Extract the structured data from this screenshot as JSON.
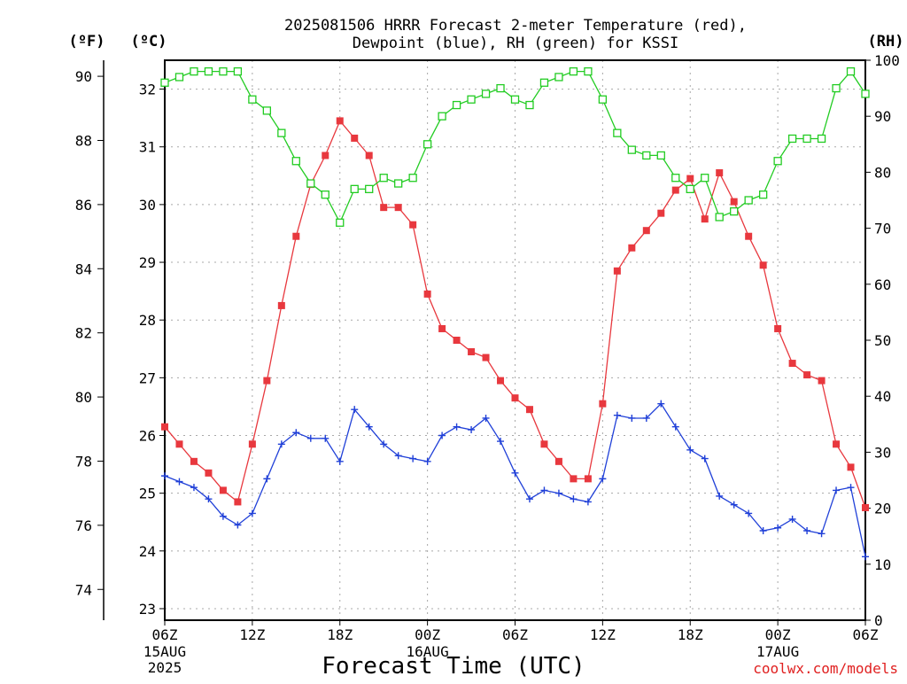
{
  "chart_data": {
    "type": "line",
    "title": [
      "2025081506 HRRR Forecast 2-meter Temperature (red),",
      "Dewpoint (blue), RH (green) for KSSI"
    ],
    "xlabel": "Forecast Time (UTC)",
    "credit": "coolwx.com/models",
    "units": {
      "fahrenheit": "(ºF)",
      "celsius": "(ºC)",
      "rh": "(RH)"
    },
    "grid": true,
    "x_hours": {
      "start": 0,
      "end": 48,
      "step": 1
    },
    "x_ticks": [
      {
        "hour": 0,
        "label": "06Z",
        "sub": [
          "15AUG",
          "2025"
        ]
      },
      {
        "hour": 6,
        "label": "12Z",
        "sub": []
      },
      {
        "hour": 12,
        "label": "18Z",
        "sub": []
      },
      {
        "hour": 18,
        "label": "00Z",
        "sub": [
          "16AUG"
        ]
      },
      {
        "hour": 24,
        "label": "06Z",
        "sub": []
      },
      {
        "hour": 30,
        "label": "12Z",
        "sub": []
      },
      {
        "hour": 36,
        "label": "18Z",
        "sub": []
      },
      {
        "hour": 42,
        "label": "00Z",
        "sub": [
          "17AUG"
        ]
      },
      {
        "hour": 48,
        "label": "06Z",
        "sub": []
      }
    ],
    "y_celsius": {
      "range": [
        22.8,
        32.5
      ],
      "ticks": [
        23,
        24,
        25,
        26,
        27,
        28,
        29,
        30,
        31,
        32
      ]
    },
    "y_fahrenheit": {
      "ticks": [
        74,
        76,
        78,
        80,
        82,
        84,
        86,
        88,
        90
      ]
    },
    "y_rh": {
      "range": [
        0,
        100
      ],
      "ticks": [
        0,
        10,
        20,
        30,
        40,
        50,
        60,
        70,
        80,
        90,
        100
      ]
    },
    "series": [
      {
        "name": "2-meter Temperature",
        "unit": "C",
        "color": "#e8383e",
        "marker": "filled-square",
        "values": [
          26.15,
          25.85,
          25.55,
          25.35,
          25.05,
          24.85,
          25.85,
          26.95,
          28.25,
          29.45,
          30.35,
          30.85,
          31.45,
          31.15,
          30.85,
          29.95,
          29.95,
          29.65,
          28.45,
          27.85,
          27.65,
          27.45,
          27.35,
          26.95,
          26.65,
          26.45,
          25.85,
          25.55,
          25.25,
          25.25,
          26.55,
          28.85,
          29.25,
          29.55,
          29.85,
          30.25,
          30.45,
          29.75,
          30.55,
          30.05,
          29.45,
          28.95,
          27.85,
          27.25,
          27.05,
          26.95,
          25.85,
          25.45,
          24.75
        ]
      },
      {
        "name": "Dewpoint",
        "unit": "C",
        "color": "#2040d8",
        "marker": "plus",
        "values": [
          25.3,
          25.2,
          25.1,
          24.9,
          24.6,
          24.45,
          24.65,
          25.25,
          25.85,
          26.05,
          25.95,
          25.95,
          25.55,
          26.45,
          26.15,
          25.85,
          25.65,
          25.6,
          25.55,
          26.0,
          26.15,
          26.1,
          26.3,
          25.9,
          25.35,
          24.9,
          25.05,
          25.0,
          24.9,
          24.85,
          25.25,
          26.35,
          26.3,
          26.3,
          26.55,
          26.15,
          25.75,
          25.6,
          24.95,
          24.8,
          24.65,
          24.35,
          24.4,
          24.55,
          24.35,
          24.3,
          25.05,
          25.1,
          23.9
        ]
      },
      {
        "name": "RH",
        "unit": "%",
        "color": "#22cc22",
        "marker": "open-square",
        "values": [
          96,
          97,
          98,
          98,
          98,
          98,
          93,
          91,
          87,
          82,
          78,
          76,
          71,
          77,
          77,
          79,
          78,
          79,
          85,
          90,
          92,
          93,
          94,
          95,
          93,
          92,
          96,
          97,
          98,
          98,
          93,
          87,
          84,
          83,
          83,
          79,
          77,
          79,
          72,
          73,
          75,
          76,
          82,
          86,
          86,
          86,
          95,
          98,
          94
        ]
      }
    ]
  }
}
